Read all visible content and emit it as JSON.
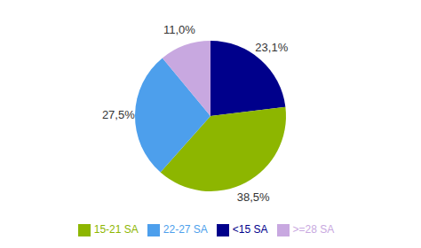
{
  "chart_data": {
    "type": "pie",
    "categories": [
      "<15 SA",
      "15-21 SA",
      "22-27 SA",
      ">=28 SA"
    ],
    "values": [
      23.1,
      38.5,
      27.5,
      11.0
    ],
    "value_labels": [
      "23,1%",
      "38,5%",
      "27,5%",
      "11,0%"
    ],
    "colors": [
      "#00008B",
      "#8DB600",
      "#4D9FEC",
      "#C8A8E0"
    ],
    "data_labels": true,
    "legend": "bottom"
  }
}
